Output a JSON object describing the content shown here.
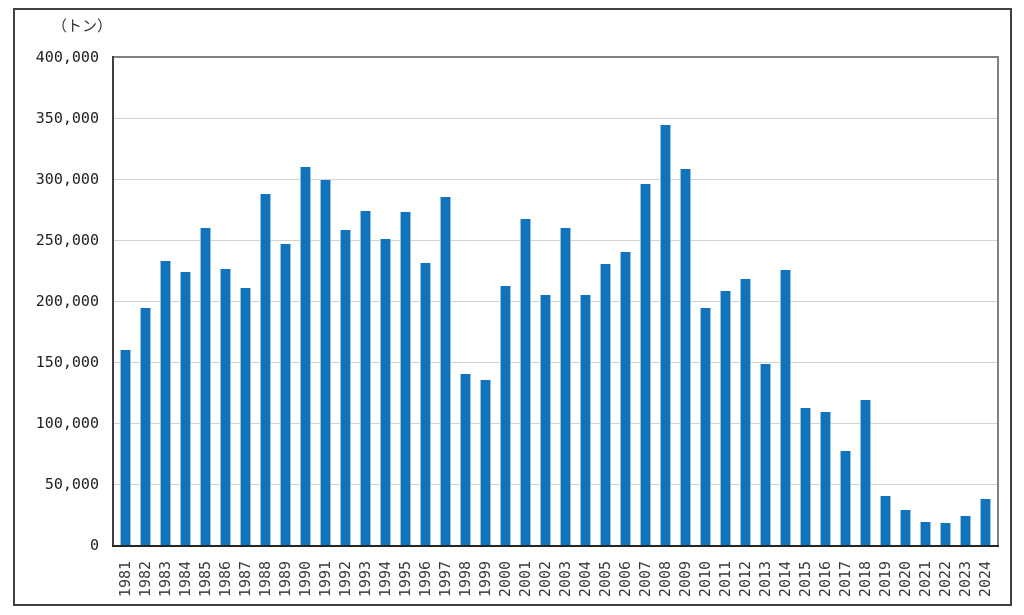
{
  "chart": {
    "unit_label": "（トン）"
  },
  "chart_data": {
    "type": "bar",
    "title": "",
    "xlabel": "",
    "ylabel": "（トン）",
    "unit": "トン",
    "bar_color": "#1273bd",
    "grid": true,
    "legend": "none",
    "ylim": [
      0,
      400000
    ],
    "y_ticks": [
      {
        "label": "400,000",
        "value": 400000
      },
      {
        "label": "350,000",
        "value": 350000
      },
      {
        "label": "300,000",
        "value": 300000
      },
      {
        "label": "250,000",
        "value": 250000
      },
      {
        "label": "200,000",
        "value": 200000
      },
      {
        "label": "150,000",
        "value": 150000
      },
      {
        "label": "100,000",
        "value": 100000
      },
      {
        "label": "50,000",
        "value": 50000
      },
      {
        "label": "0",
        "value": 0
      }
    ],
    "categories": [
      "1981",
      "1982",
      "1983",
      "1984",
      "1985",
      "1986",
      "1987",
      "1988",
      "1989",
      "1990",
      "1991",
      "1992",
      "1993",
      "1994",
      "1995",
      "1996",
      "1997",
      "1998",
      "1999",
      "2000",
      "2001",
      "2002",
      "2003",
      "2004",
      "2005",
      "2006",
      "2007",
      "2008",
      "2009",
      "2010",
      "2011",
      "2012",
      "2013",
      "2014",
      "2015",
      "2016",
      "2017",
      "2018",
      "2019",
      "2020",
      "2021",
      "2022",
      "2023",
      "2024"
    ],
    "values": [
      160000,
      194000,
      233000,
      224000,
      260000,
      226000,
      211000,
      288000,
      247000,
      310000,
      299000,
      258000,
      274000,
      251000,
      273000,
      231000,
      285000,
      140000,
      135000,
      212000,
      267000,
      205000,
      260000,
      205000,
      230000,
      240000,
      296000,
      344000,
      308000,
      194000,
      208000,
      218000,
      148000,
      225000,
      112000,
      109000,
      77000,
      119000,
      40000,
      29000,
      19000,
      18000,
      24000,
      38000
    ]
  }
}
